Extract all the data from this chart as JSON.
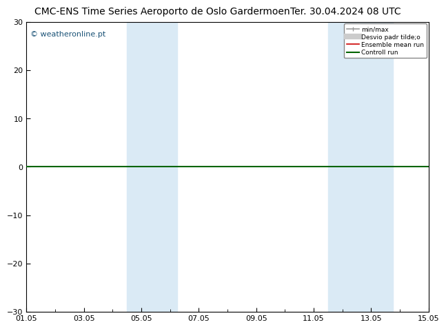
{
  "title": "CMC-ENS Time Series Aeroporto de Oslo Gardermoen",
  "title_right": "Ter. 30.04.2024 08 UTC",
  "watermark": "© weatheronline.pt",
  "ylim": [
    -30,
    30
  ],
  "yticks": [
    -30,
    -20,
    -10,
    0,
    10,
    20,
    30
  ],
  "xtick_labels": [
    "01.05",
    "03.05",
    "05.05",
    "07.05",
    "09.05",
    "11.05",
    "13.05",
    "15.05"
  ],
  "xtick_positions": [
    0,
    2,
    4,
    6,
    8,
    10,
    12,
    14
  ],
  "xlim": [
    0,
    14
  ],
  "shaded_bands": [
    {
      "x_start": 3.5,
      "x_end": 5.25,
      "color": "#daeaf5"
    },
    {
      "x_start": 10.5,
      "x_end": 12.75,
      "color": "#daeaf5"
    }
  ],
  "hline_y": 0,
  "hline_color": "#006400",
  "hline_lw": 1.5,
  "legend_items": [
    {
      "label": "min/max",
      "color": "#999999",
      "lw": 1.2
    },
    {
      "label": "Desvio padr tilde;o",
      "color": "#cccccc",
      "lw": 6
    },
    {
      "label": "Ensemble mean run",
      "color": "#cc0000",
      "lw": 1.2
    },
    {
      "label": "Controll run",
      "color": "#006400",
      "lw": 1.5
    }
  ],
  "bg_color": "#ffffff",
  "plot_bg_color": "#ffffff",
  "title_fontsize": 10,
  "watermark_color": "#1a5276",
  "watermark_fontsize": 8,
  "tick_fontsize": 8,
  "grid_color": "#cccccc"
}
